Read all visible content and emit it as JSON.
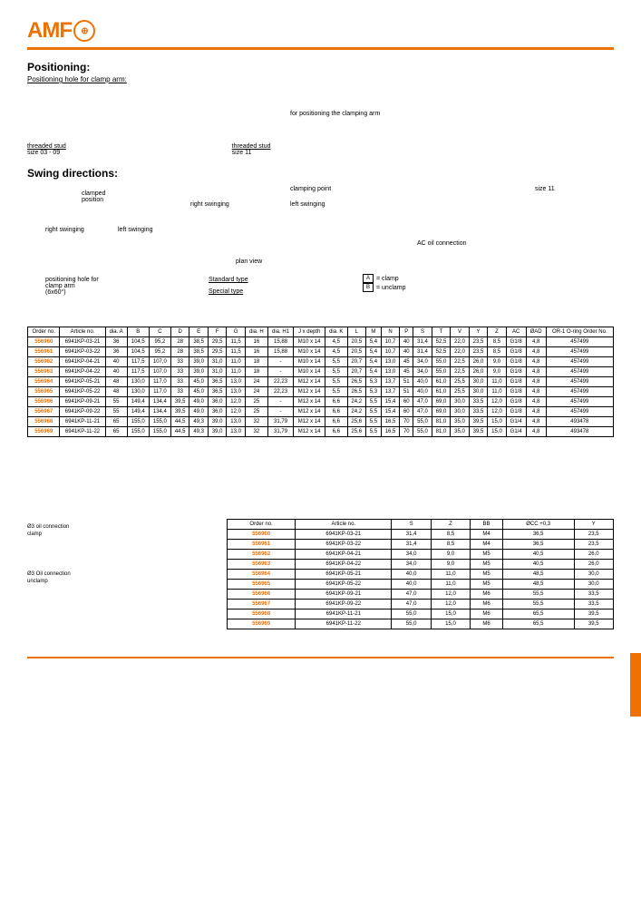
{
  "logo": "AMF",
  "sections": {
    "positioning": {
      "title": "Positioning:",
      "sub": "Positioning hole for clamp arm:",
      "note1": "for positioning\nthe clamping arm",
      "stud1": "threaded stud",
      "stud2": "threaded stud",
      "sz1": "size 03 - 09",
      "sz2": "size 11"
    },
    "swing": {
      "title": "Swing directions:",
      "cp": "clamped\nposition",
      "cpt": "clamping point",
      "sz11": "size 11",
      "rs": "right swinging",
      "ls": "left swinging",
      "rs2": "right swinging",
      "ls2": "left swinging",
      "ac": "AC oil connection",
      "pv": "plan view",
      "std": "Standard type",
      "spc": "Special type",
      "ph": "positioning hole for\nclamp arm\n(6x60°)",
      "la": "= clamp",
      "lb": "= unclamp"
    }
  },
  "t1": {
    "headers": [
      "Order no.",
      "Article no.",
      "dia. A",
      "B",
      "C",
      "D",
      "E",
      "F",
      "G",
      "dia. H",
      "dia. H1",
      "J x depth",
      "dia. K",
      "L",
      "M",
      "N",
      "P",
      "S",
      "T",
      "V",
      "Y",
      "Z",
      "AC",
      "ØAD",
      "OR-1 O-ring Order No."
    ],
    "rows": [
      [
        "556960",
        "6941KP-03-21",
        "36",
        "104,5",
        "95,2",
        "28",
        "38,5",
        "29,5",
        "11,5",
        "16",
        "15,88",
        "M10 x 14",
        "4,5",
        "20,5",
        "5,4",
        "10,7",
        "40",
        "31,4",
        "52,5",
        "22,0",
        "23,5",
        "8,5",
        "G1/8",
        "4,8",
        "457499"
      ],
      [
        "556961",
        "6941KP-03-22",
        "36",
        "104,5",
        "95,2",
        "28",
        "38,5",
        "29,5",
        "11,5",
        "16",
        "15,88",
        "M10 x 14",
        "4,5",
        "20,5",
        "5,4",
        "10,7",
        "40",
        "31,4",
        "52,5",
        "22,0",
        "23,5",
        "8,5",
        "G1/8",
        "4,8",
        "457499"
      ],
      [
        "556962",
        "6941KP-04-21",
        "40",
        "117,5",
        "107,0",
        "33",
        "39,0",
        "31,0",
        "11,0",
        "18",
        "-",
        "M10 x 14",
        "5,5",
        "20,7",
        "5,4",
        "13,0",
        "45",
        "34,0",
        "55,0",
        "22,5",
        "26,0",
        "9,0",
        "G1/8",
        "4,8",
        "457499"
      ],
      [
        "556963",
        "6941KP-04-22",
        "40",
        "117,5",
        "107,0",
        "33",
        "39,0",
        "31,0",
        "11,0",
        "18",
        "-",
        "M10 x 14",
        "5,5",
        "20,7",
        "5,4",
        "13,0",
        "45",
        "34,0",
        "55,0",
        "22,5",
        "26,0",
        "9,0",
        "G1/8",
        "4,8",
        "457499"
      ],
      [
        "556964",
        "6941KP-05-21",
        "48",
        "130,0",
        "117,0",
        "33",
        "45,0",
        "36,5",
        "13,0",
        "24",
        "22,23",
        "M12 x 14",
        "5,5",
        "26,5",
        "5,3",
        "13,7",
        "51",
        "40,0",
        "61,0",
        "25,5",
        "30,0",
        "11,0",
        "G1/8",
        "4,8",
        "457499"
      ],
      [
        "556965",
        "6941KP-05-22",
        "48",
        "130,0",
        "117,0",
        "33",
        "45,0",
        "36,5",
        "13,0",
        "24",
        "22,23",
        "M12 x 14",
        "5,5",
        "26,5",
        "5,3",
        "13,7",
        "51",
        "40,0",
        "61,0",
        "25,5",
        "30,0",
        "11,0",
        "G1/8",
        "4,8",
        "457499"
      ],
      [
        "556966",
        "6941KP-09-21",
        "55",
        "149,4",
        "134,4",
        "39,5",
        "49,0",
        "36,0",
        "12,0",
        "25",
        "-",
        "M12 x 14",
        "6,6",
        "24,2",
        "5,5",
        "15,4",
        "60",
        "47,0",
        "69,0",
        "30,0",
        "33,5",
        "12,0",
        "G1/8",
        "4,8",
        "457499"
      ],
      [
        "556967",
        "6941KP-09-22",
        "55",
        "149,4",
        "134,4",
        "39,5",
        "49,0",
        "36,0",
        "12,0",
        "25",
        "-",
        "M12 x 14",
        "6,6",
        "24,2",
        "5,5",
        "15,4",
        "60",
        "47,0",
        "69,0",
        "30,0",
        "33,5",
        "12,0",
        "G1/8",
        "4,8",
        "457499"
      ],
      [
        "556968",
        "6941KP-11-21",
        "65",
        "155,0",
        "155,0",
        "44,5",
        "49,3",
        "39,0",
        "13,0",
        "32",
        "31,79",
        "M12 x 14",
        "6,6",
        "25,6",
        "5,5",
        "16,5",
        "70",
        "55,0",
        "81,0",
        "35,0",
        "39,5",
        "15,0",
        "G1/4",
        "4,8",
        "493478"
      ],
      [
        "556969",
        "6941KP-11-22",
        "65",
        "155,0",
        "155,0",
        "44,5",
        "49,3",
        "39,0",
        "13,0",
        "32",
        "31,79",
        "M12 x 14",
        "6,6",
        "25,6",
        "5,5",
        "16,5",
        "70",
        "55,0",
        "81,0",
        "35,0",
        "39,5",
        "15,0",
        "G1/4",
        "4,8",
        "493478"
      ]
    ]
  },
  "oil": {
    "c": "Ø3 oil connection\nclamp",
    "u": "Ø3 Oil connection\nunclamp"
  },
  "t2": {
    "headers": [
      "Order no.",
      "Article no.",
      "S",
      "Z",
      "BB",
      "ØCC +0,3",
      "Y"
    ],
    "rows": [
      [
        "556960",
        "6941KP-03-21",
        "31,4",
        "8,5",
        "M4",
        "36,5",
        "23,5"
      ],
      [
        "556961",
        "6941KP-03-22",
        "31,4",
        "8,5",
        "M4",
        "36,5",
        "23,5"
      ],
      [
        "556962",
        "6941KP-04-21",
        "34,0",
        "9,0",
        "M5",
        "40,5",
        "26,0"
      ],
      [
        "556963",
        "6941KP-04-22",
        "34,0",
        "9,0",
        "M5",
        "40,5",
        "26,0"
      ],
      [
        "556964",
        "6941KP-05-21",
        "40,0",
        "11,0",
        "M5",
        "48,5",
        "30,0"
      ],
      [
        "556965",
        "6941KP-05-22",
        "40,0",
        "11,0",
        "M5",
        "48,5",
        "30,0"
      ],
      [
        "556966",
        "6941KP-09-21",
        "47,0",
        "12,0",
        "M6",
        "55,5",
        "33,5"
      ],
      [
        "556967",
        "6941KP-09-22",
        "47,0",
        "12,0",
        "M6",
        "55,5",
        "33,5"
      ],
      [
        "556968",
        "6941KP-11-21",
        "55,0",
        "15,0",
        "M6",
        "65,5",
        "39,5"
      ],
      [
        "556969",
        "6941KP-11-22",
        "55,0",
        "15,0",
        "M6",
        "65,5",
        "39,5"
      ]
    ]
  }
}
